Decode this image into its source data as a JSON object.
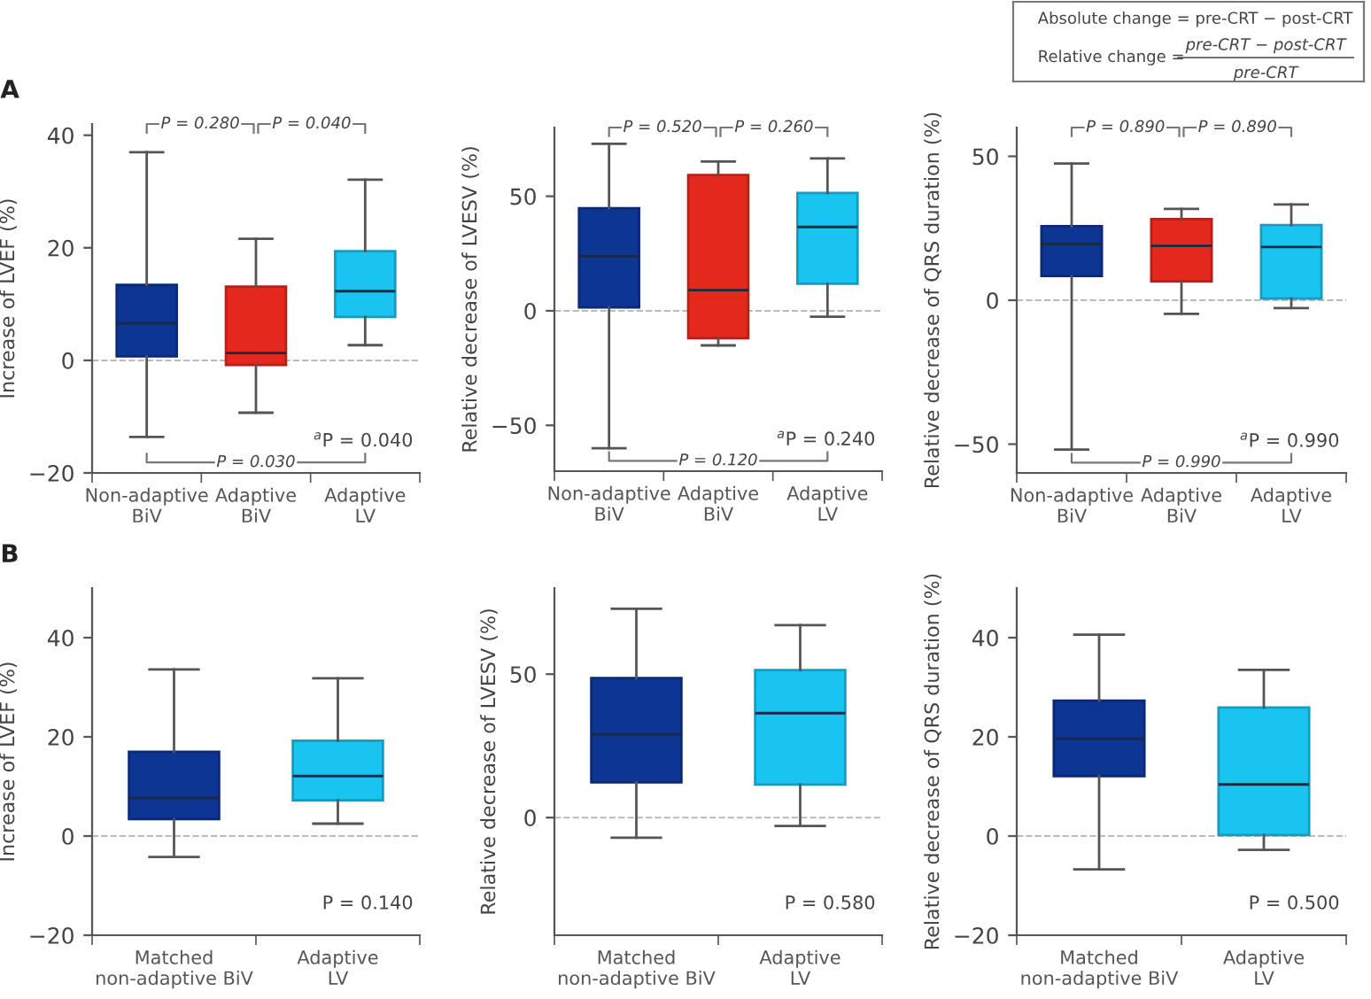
{
  "chart_data": [
    {
      "type": "other",
      "annotations": [
        "Absolute change = pre-CRT − post-CRT",
        "Relative change =",
        "pre-CRT − post-CRT",
        "pre-CRT"
      ]
    },
    {
      "type": "box",
      "categories": [
        "Non-adaptive\nBiV",
        "Adaptive\nBiV",
        "Adaptive\nLV"
      ],
      "colors": [
        "#0d3593",
        "#e5281e",
        "#19c4f0"
      ],
      "ylabel": "Increase of LVEF (%)",
      "ylim": [
        -20,
        42
      ],
      "yticks": [
        -20,
        0,
        20,
        40
      ],
      "boxes": [
        {
          "low": -13.6,
          "q1": 0.7,
          "median": 6.6,
          "q3": 13.4,
          "high": 37.0
        },
        {
          "low": -9.3,
          "q1": -0.8,
          "median": 1.3,
          "q3": 13.1,
          "high": 21.6
        },
        {
          "low": 2.7,
          "q1": 7.7,
          "median": 12.3,
          "q3": 19.4,
          "high": 32.1
        }
      ],
      "ref_lines": [
        {
          "axis": "y",
          "value": 0,
          "color": "#bbbbbb",
          "line_style": "dashed"
        }
      ],
      "annotations": [
        "A",
        "P = 0.280",
        "P = 0.040",
        "P = 0.030",
        "$^{a}$P = 0.040"
      ]
    },
    {
      "type": "box",
      "categories": [
        "Non-adaptive\nBiV",
        "Adaptive\nBiV",
        "Adaptive\nLV"
      ],
      "colors": [
        "#0d3593",
        "#e5281e",
        "#19c4f0"
      ],
      "ylabel": "Relative decrease of LVESV (%)",
      "ylim": [
        -70,
        80
      ],
      "yticks": [
        -50,
        0,
        50
      ],
      "boxes": [
        {
          "low": -60,
          "q1": 1.5,
          "median": 23.8,
          "q3": 44.8,
          "high": 72.9
        },
        {
          "low": -15.1,
          "q1": -12.0,
          "median": 9.0,
          "q3": 59.3,
          "high": 65.2
        },
        {
          "low": -2.6,
          "q1": 11.8,
          "median": 36.6,
          "q3": 51.4,
          "high": 66.5
        }
      ],
      "ref_lines": [
        {
          "axis": "y",
          "value": 0,
          "color": "#bbbbbb",
          "line_style": "dashed"
        }
      ],
      "annotations": [
        "P = 0.520",
        "P = 0.260",
        "P = 0.120",
        "$^{a}$P = 0.240"
      ]
    },
    {
      "type": "box",
      "categories": [
        "Non-adaptive\nBiV",
        "Adaptive\nBiV",
        "Adaptive\nLV"
      ],
      "colors": [
        "#0d3593",
        "#e5281e",
        "#19c4f0"
      ],
      "ylabel": "Relative decrease of QRS duration (%)",
      "ylim": [
        -60,
        60
      ],
      "yticks": [
        -50,
        0,
        50
      ],
      "boxes": [
        {
          "low": -51.9,
          "q1": 8.4,
          "median": 19.5,
          "q3": 25.7,
          "high": 47.5
        },
        {
          "low": -4.7,
          "q1": 6.6,
          "median": 18.9,
          "q3": 28.2,
          "high": 31.7
        },
        {
          "low": -2.7,
          "q1": 0.6,
          "median": 18.5,
          "q3": 26.1,
          "high": 33.3
        }
      ],
      "ref_lines": [
        {
          "axis": "y",
          "value": 0,
          "color": "#bbbbbb",
          "line_style": "dashed"
        }
      ],
      "annotations": [
        "P = 0.890",
        "P = 0.890",
        "P = 0.990",
        "$^{a}$P = 0.990"
      ]
    },
    {
      "type": "box",
      "categories": [
        "Matched\nnon-adaptive BiV",
        "Adaptive\nLV"
      ],
      "colors": [
        "#0d3593",
        "#19c4f0"
      ],
      "ylabel": "Increase of LVEF (%)",
      "ylim": [
        -20,
        50
      ],
      "yticks": [
        -20,
        0,
        20,
        40
      ],
      "boxes": [
        {
          "low": -4.2,
          "q1": 3.4,
          "median": 7.7,
          "q3": 17.0,
          "high": 33.6
        },
        {
          "low": 2.5,
          "q1": 7.2,
          "median": 12.1,
          "q3": 19.2,
          "high": 31.8
        }
      ],
      "ref_lines": [
        {
          "axis": "y",
          "value": 0,
          "color": "#bbbbbb",
          "line_style": "dashed"
        }
      ],
      "annotations": [
        "B",
        "P = 0.140"
      ]
    },
    {
      "type": "box",
      "categories": [
        "Matched\nnon-adaptive BiV",
        "Adaptive\nLV"
      ],
      "colors": [
        "#0d3593",
        "#19c4f0"
      ],
      "ylabel": "Relative decrease of LVESV (%)",
      "ylim": [
        -41,
        80
      ],
      "yticks": [
        0,
        50
      ],
      "boxes": [
        {
          "low": -7.0,
          "q1": 12.3,
          "median": 29.0,
          "q3": 48.6,
          "high": 72.8
        },
        {
          "low": -2.9,
          "q1": 11.5,
          "median": 36.4,
          "q3": 51.4,
          "high": 67.1
        }
      ],
      "ref_lines": [
        {
          "axis": "y",
          "value": 0,
          "color": "#bbbbbb",
          "line_style": "dashed"
        }
      ],
      "annotations": [
        "P = 0.580"
      ]
    },
    {
      "type": "box",
      "categories": [
        "Matched\nnon-adaptive BiV",
        "Adaptive\nLV"
      ],
      "colors": [
        "#0d3593",
        "#19c4f0"
      ],
      "ylabel": "Relative decrease of QRS duration (%)",
      "ylim": [
        -20,
        50
      ],
      "yticks": [
        -20,
        0,
        20,
        40
      ],
      "boxes": [
        {
          "low": -6.7,
          "q1": 12.1,
          "median": 19.6,
          "q3": 27.3,
          "high": 40.6
        },
        {
          "low": -2.8,
          "q1": 0.2,
          "median": 10.4,
          "q3": 25.9,
          "high": 33.5
        }
      ],
      "ref_lines": [
        {
          "axis": "y",
          "value": 0,
          "color": "#bbbbbb",
          "line_style": "dashed"
        }
      ],
      "annotations": [
        "P = 0.500"
      ]
    }
  ]
}
